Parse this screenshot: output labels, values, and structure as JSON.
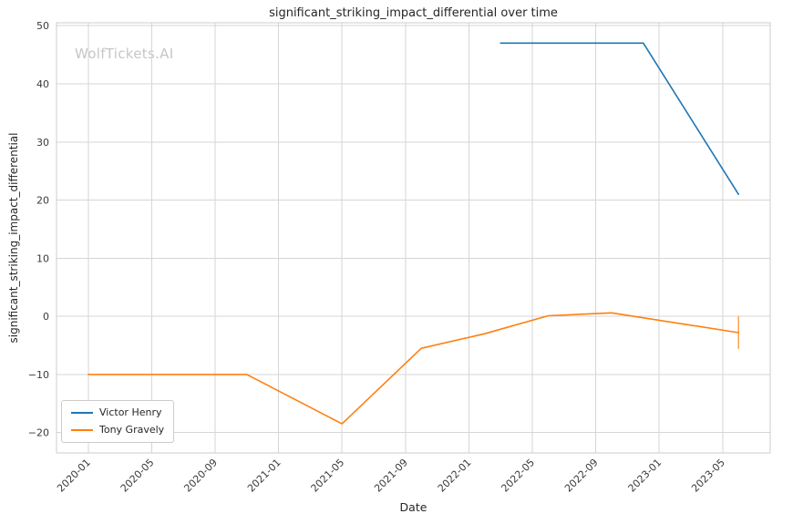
{
  "watermark": "WolfTickets.AI",
  "chart_data": {
    "type": "line",
    "title": "significant_striking_impact_differential over time",
    "xlabel": "Date",
    "ylabel": "significant_striking_impact_differential",
    "x_tick_labels": [
      "2020-01",
      "2020-05",
      "2020-09",
      "2021-01",
      "2021-05",
      "2021-09",
      "2022-01",
      "2022-05",
      "2022-09",
      "2023-01",
      "2023-05"
    ],
    "y_ticks": [
      -20,
      -10,
      0,
      10,
      20,
      30,
      40,
      50
    ],
    "ylim": [
      -23.5,
      50.5
    ],
    "xlim_months_from_2020_01": [
      -2,
      43
    ],
    "grid": true,
    "legend_position": "lower left",
    "colors": {
      "grid": "#d6d6d6",
      "spine": "#cccccc",
      "text": "#3a3a3a",
      "watermark": "#c6c6c6"
    },
    "series": [
      {
        "name": "Victor Henry",
        "color": "#1f77b4",
        "points": [
          [
            "2022-03",
            47
          ],
          [
            "2022-12",
            47
          ],
          [
            "2023-06",
            21
          ]
        ]
      },
      {
        "name": "Tony Gravely",
        "color": "#ff7f0e",
        "points": [
          [
            "2020-01",
            -10
          ],
          [
            "2020-11",
            -10
          ],
          [
            "2021-05",
            -18.5
          ],
          [
            "2021-10",
            -5.5
          ],
          [
            "2022-02",
            -3
          ],
          [
            "2022-06",
            0.1
          ],
          [
            "2022-10",
            0.6
          ],
          [
            "2023-06",
            -2.8
          ]
        ],
        "error_bar": {
          "x": "2023-06",
          "y": -2.8,
          "plus": 2.8,
          "minus": 2.8
        }
      }
    ]
  }
}
